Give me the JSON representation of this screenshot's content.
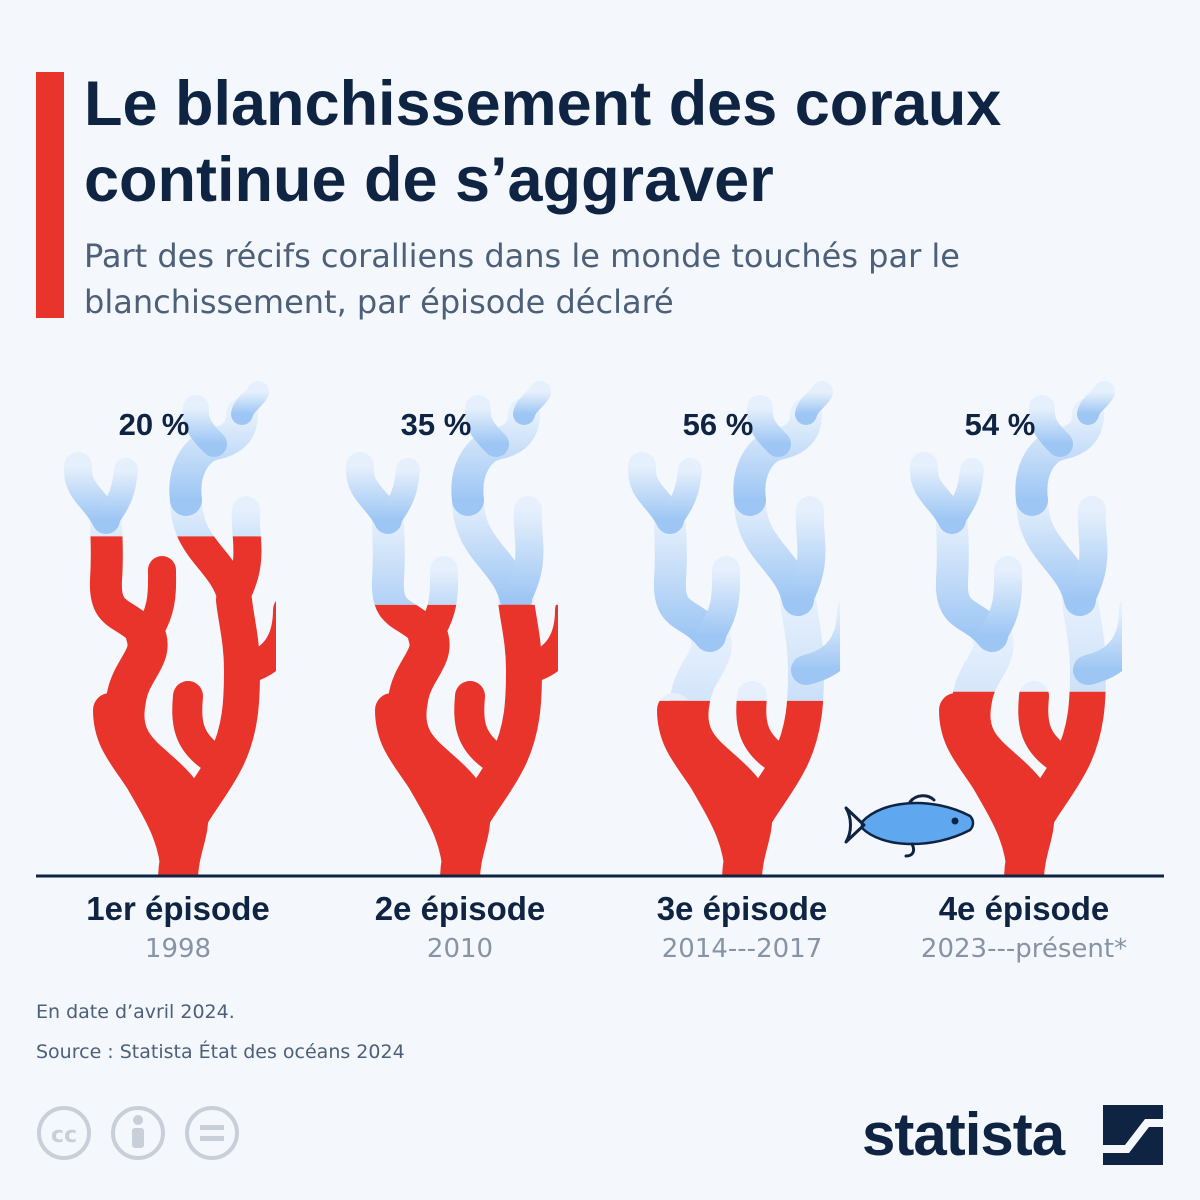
{
  "title": "Le blanchissement des coraux continue de s’aggraver",
  "subtitle": "Part des récifs coralliens dans le monde touchés par le blanchissement, par épisode déclaré",
  "chart_data": {
    "type": "bar",
    "title": "Le blanchissement des coraux continue de s’aggraver",
    "subtitle": "Part des récifs coralliens dans le monde touchés par le blanchissement, par épisode déclaré",
    "categories": [
      "1er épisode",
      "2e épisode",
      "3e épisode",
      "4e épisode"
    ],
    "periods": [
      "1998",
      "2010",
      "2014‑-‑2017",
      "2023‑-‑présent*"
    ],
    "values": [
      20,
      35,
      56,
      54
    ],
    "value_labels": [
      "20 %",
      "35 %",
      "56 %",
      "54 %"
    ],
    "unit": "%",
    "ylim": [
      0,
      100
    ],
    "xlabel": "",
    "ylabel": ""
  },
  "colors": {
    "healthy": "#e8342a",
    "bleached_top": "#e6f0fc",
    "bleached_bottom": "#9dc6f4",
    "fish": "#5fa8f0",
    "text": "#0e2442",
    "muted": "#8694a6"
  },
  "icons": [
    "coral-icon",
    "fish-icon",
    "cc-icon",
    "attribution-icon",
    "no-derivatives-icon",
    "statista-logo-icon"
  ],
  "footer": {
    "note": "En date d’avril 2024.",
    "source": "Source : Statista État des océans 2024",
    "brand": "statista"
  }
}
